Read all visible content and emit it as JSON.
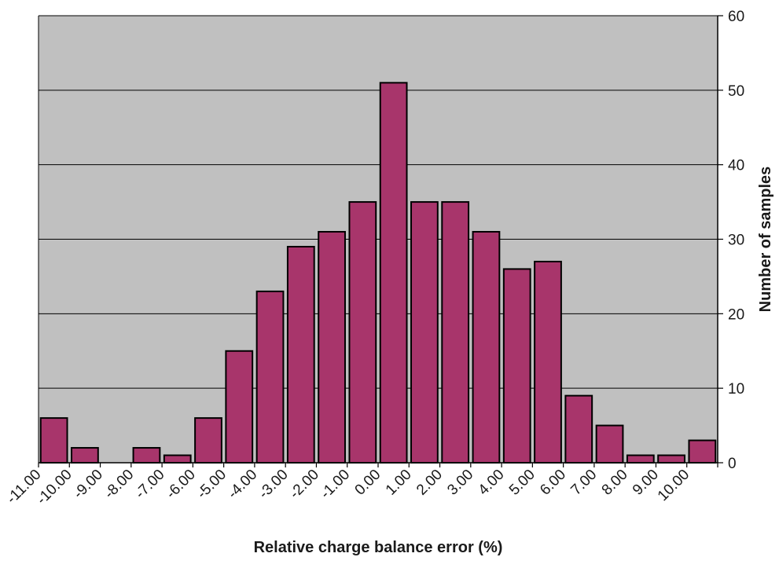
{
  "chart_data": {
    "type": "bar",
    "categories": [
      "-11.00",
      "-10.00",
      "-9.00",
      "-8.00",
      "-7.00",
      "-6.00",
      "-5.00",
      "-4.00",
      "-3.00",
      "-2.00",
      "-1.00",
      "0.00",
      "1.00",
      "2.00",
      "3.00",
      "4.00",
      "5.00",
      "6.00",
      "7.00",
      "8.00",
      "9.00",
      "10.00"
    ],
    "values": [
      6,
      2,
      0,
      2,
      1,
      6,
      15,
      23,
      29,
      31,
      35,
      51,
      35,
      35,
      31,
      26,
      27,
      9,
      5,
      1,
      1,
      3
    ],
    "title": "",
    "xlabel": "Relative charge balance error (%)",
    "ylabel": "Number of samples",
    "ylim": [
      0,
      60
    ],
    "yticks": [
      0,
      10,
      20,
      30,
      40,
      50,
      60
    ],
    "y_axis_side": "right",
    "grid": "horizontal",
    "legend": "none",
    "colors": {
      "plot_background": "#c0c0c0",
      "bar_fill": "#a8356b",
      "bar_stroke": "#000000",
      "grid": "#000000"
    }
  }
}
